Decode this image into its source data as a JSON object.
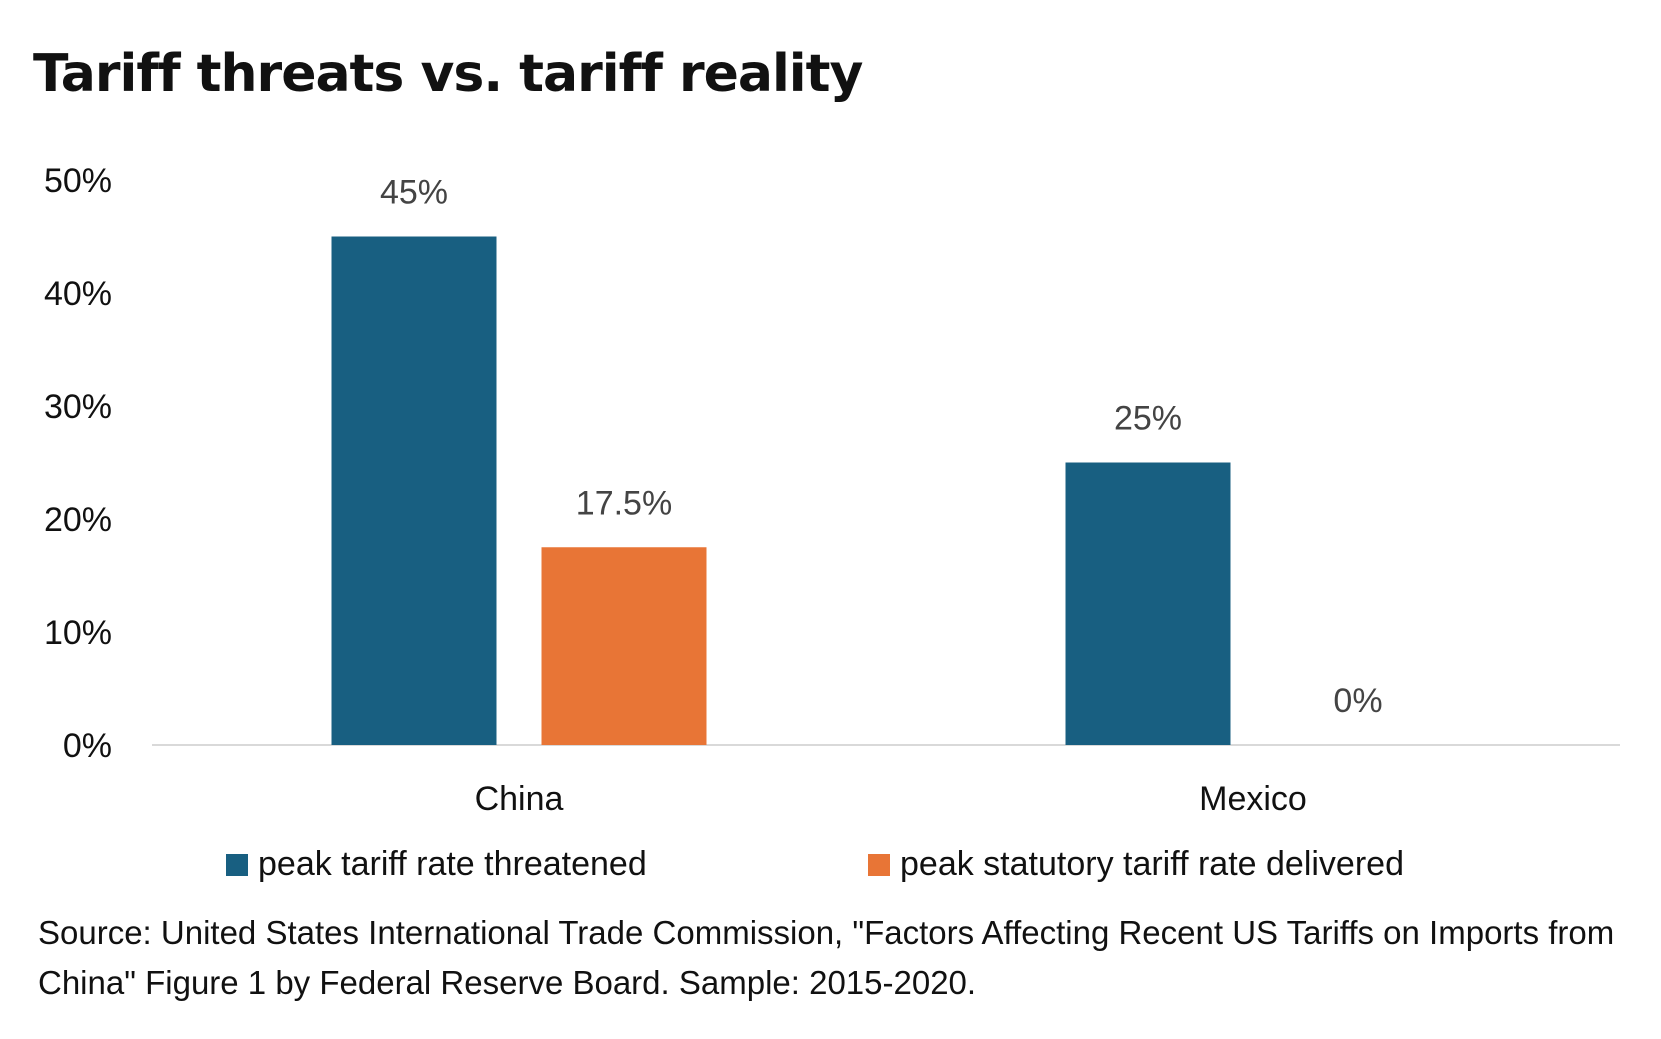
{
  "chart_data": {
    "type": "bar",
    "title": "Tariff threats vs. tariff reality",
    "categories": [
      "China",
      "Mexico"
    ],
    "series": [
      {
        "name": "peak tariff rate threatened",
        "color": "#185F81",
        "values": [
          45,
          25
        ],
        "labels": [
          "45%",
          "25%"
        ]
      },
      {
        "name": "peak statutory tariff rate delivered",
        "color": "#E87536",
        "values": [
          17.5,
          0
        ],
        "labels": [
          "17.5%",
          "0%"
        ]
      }
    ],
    "ylim": [
      0,
      50
    ],
    "yticks": [
      0,
      10,
      20,
      30,
      40,
      50
    ],
    "ytick_labels": [
      "0%",
      "10%",
      "20%",
      "30%",
      "40%",
      "50%"
    ],
    "xlabel": "",
    "ylabel": "",
    "grid": false,
    "legend_position": "bottom"
  },
  "source": "Source: United States International Trade Commission, \"Factors Affecting Recent US Tariffs on Imports from China\" Figure 1 by Federal Reserve Board. Sample: 2015-2020."
}
